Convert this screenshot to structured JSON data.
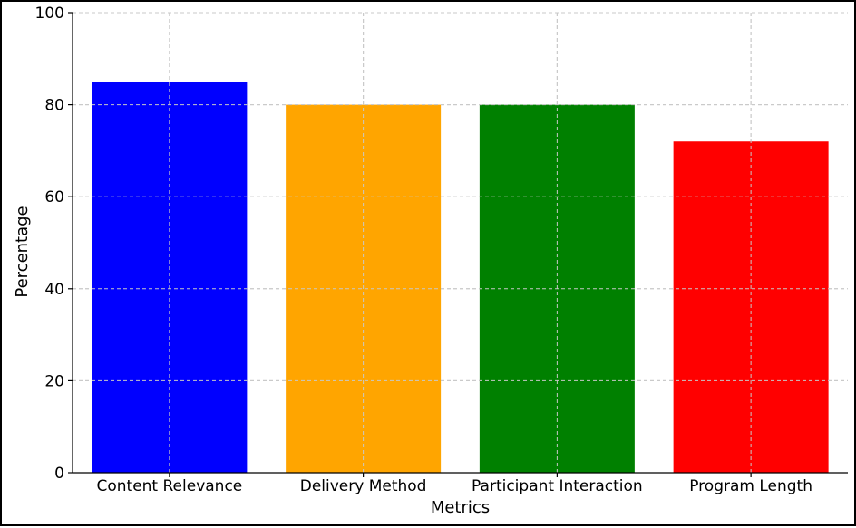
{
  "chart_data": {
    "type": "bar",
    "title": "",
    "xlabel": "Metrics",
    "ylabel": "Percentage",
    "categories": [
      "Content Relevance",
      "Delivery Method",
      "Participant Interaction",
      "Program Length"
    ],
    "values": [
      85,
      80,
      80,
      72
    ],
    "colors": [
      "#0000ff",
      "#ffa500",
      "#008000",
      "#ff0000"
    ],
    "ylim": [
      0,
      100
    ],
    "yticks": [
      0,
      20,
      40,
      60,
      80,
      100
    ],
    "ytick_labels": [
      "0",
      "20",
      "40",
      "60",
      "80",
      "100"
    ],
    "grid": true,
    "grid_style": "dashed"
  }
}
